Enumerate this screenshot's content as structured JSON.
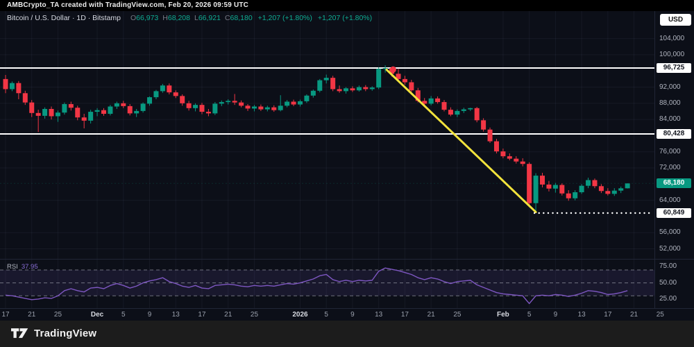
{
  "topbar": {
    "attribution": "AMBCrypto_TA created with TradingView.com, Feb 20, 2026 09:59 UTC"
  },
  "legend": {
    "symbol": "Bitcoin / U.S. Dollar · 1D · Bitstamp",
    "open_label": "O",
    "open": "66,973",
    "high_label": "H",
    "high": "68,208",
    "low_label": "L",
    "low": "66,921",
    "close_label": "C",
    "close": "68,180",
    "change": "+1,207 (+1.80%)",
    "change_secondary": "+1,207 (+1.80%)"
  },
  "price_axis": {
    "currency_button": "USD",
    "ticks": [
      {
        "label": "104,000",
        "price": 104000,
        "type": "grid"
      },
      {
        "label": "100,000",
        "price": 100000,
        "type": "grid"
      },
      {
        "label": "96,725",
        "price": 96725,
        "type": "level"
      },
      {
        "label": "92,000",
        "price": 92000,
        "type": "grid"
      },
      {
        "label": "88,000",
        "price": 88000,
        "type": "grid"
      },
      {
        "label": "84,000",
        "price": 84000,
        "type": "grid"
      },
      {
        "label": "80,428",
        "price": 80428,
        "type": "level"
      },
      {
        "label": "76,000",
        "price": 76000,
        "type": "grid"
      },
      {
        "label": "72,000",
        "price": 72000,
        "type": "grid"
      },
      {
        "label": "68,180",
        "price": 68180,
        "type": "last"
      },
      {
        "label": "64,000",
        "price": 64000,
        "type": "grid"
      },
      {
        "label": "60,849",
        "price": 60849,
        "type": "level"
      },
      {
        "label": "56,000",
        "price": 56000,
        "type": "grid"
      },
      {
        "label": "52,000",
        "price": 52000,
        "type": "grid"
      }
    ],
    "rsi_ticks": [
      {
        "label": "75.00",
        "value": 75
      },
      {
        "label": "50.00",
        "value": 50
      },
      {
        "label": "25.00",
        "value": 25
      }
    ]
  },
  "time_axis": {
    "labels": [
      {
        "text": "17",
        "i": 0
      },
      {
        "text": "21",
        "i": 4
      },
      {
        "text": "25",
        "i": 8
      },
      {
        "text": "Dec",
        "i": 14,
        "strong": true
      },
      {
        "text": "5",
        "i": 18
      },
      {
        "text": "9",
        "i": 22
      },
      {
        "text": "13",
        "i": 26
      },
      {
        "text": "17",
        "i": 30
      },
      {
        "text": "21",
        "i": 34
      },
      {
        "text": "25",
        "i": 38
      },
      {
        "text": "2026",
        "i": 45,
        "strong": true
      },
      {
        "text": "5",
        "i": 49
      },
      {
        "text": "9",
        "i": 53
      },
      {
        "text": "13",
        "i": 57
      },
      {
        "text": "17",
        "i": 61
      },
      {
        "text": "21",
        "i": 65
      },
      {
        "text": "25",
        "i": 69
      },
      {
        "text": "Feb",
        "i": 76,
        "strong": true
      },
      {
        "text": "5",
        "i": 80
      },
      {
        "text": "9",
        "i": 84
      },
      {
        "text": "13",
        "i": 88
      },
      {
        "text": "17",
        "i": 92
      },
      {
        "text": "21",
        "i": 96
      },
      {
        "text": "25",
        "i": 100
      }
    ]
  },
  "indicator": {
    "name": "RSI",
    "value": "37.95",
    "band_upper": 70,
    "band_middle": 50,
    "band_lower": 30
  },
  "footer": {
    "brand": "TradingView"
  },
  "colors": {
    "up": "#089981",
    "down": "#f23645",
    "trendline": "#f2e33c",
    "rsi": "#7e57c2",
    "level_line": "#ffffff",
    "dotted_line": "#ffffff",
    "marker": "#f23645",
    "band_fill": "rgba(126,87,194,0.12)",
    "grid": "rgba(160,175,210,0.07)",
    "band_dash": "rgba(225,229,238,0.45)"
  },
  "chart_data": {
    "type": "candlestick",
    "symbol": "Bitcoin / U.S. Dollar",
    "exchange": "Bitstamp",
    "interval": "1D",
    "ohlc_note": "candles are [open,high,low,close] in USD, daily Nov 17 2025 - Feb 20 2026",
    "candles": [
      [
        94000,
        95000,
        90500,
        91500
      ],
      [
        91500,
        93400,
        91000,
        93000
      ],
      [
        93000,
        93500,
        89000,
        90500
      ],
      [
        90500,
        91100,
        87600,
        88200
      ],
      [
        88200,
        88800,
        84600,
        85600
      ],
      [
        85600,
        86400,
        80900,
        84900
      ],
      [
        84900,
        87000,
        84200,
        86600
      ],
      [
        86600,
        87200,
        84000,
        84800
      ],
      [
        84800,
        86200,
        83400,
        85700
      ],
      [
        85700,
        88200,
        85200,
        87800
      ],
      [
        87800,
        88400,
        86200,
        86900
      ],
      [
        86900,
        87400,
        83800,
        84500
      ],
      [
        84500,
        85400,
        81800,
        83700
      ],
      [
        83700,
        86400,
        83000,
        85900
      ],
      [
        85900,
        86800,
        84800,
        86300
      ],
      [
        86300,
        86800,
        84900,
        85400
      ],
      [
        85400,
        87600,
        85000,
        87200
      ],
      [
        87200,
        88400,
        86600,
        88000
      ],
      [
        88000,
        88600,
        86800,
        87300
      ],
      [
        87300,
        87800,
        85000,
        85500
      ],
      [
        85500,
        86600,
        84600,
        86100
      ],
      [
        86100,
        88200,
        85700,
        87900
      ],
      [
        87900,
        89700,
        87400,
        89500
      ],
      [
        89500,
        91300,
        89000,
        91000
      ],
      [
        91000,
        92800,
        90600,
        92400
      ],
      [
        92400,
        92900,
        90200,
        90700
      ],
      [
        90700,
        91200,
        89300,
        89800
      ],
      [
        89800,
        90200,
        87400,
        88000
      ],
      [
        88000,
        88600,
        86200,
        86800
      ],
      [
        86800,
        88000,
        86000,
        87600
      ],
      [
        87600,
        88100,
        85300,
        85900
      ],
      [
        85900,
        86600,
        84800,
        85500
      ],
      [
        85500,
        88300,
        85100,
        87900
      ],
      [
        87900,
        88700,
        87300,
        88300
      ],
      [
        88300,
        89000,
        87700,
        88600
      ],
      [
        88600,
        90300,
        87600,
        88200
      ],
      [
        88200,
        88700,
        87000,
        87400
      ],
      [
        87400,
        87800,
        86100,
        86700
      ],
      [
        86700,
        87600,
        86000,
        87200
      ],
      [
        87200,
        87700,
        86100,
        86500
      ],
      [
        86500,
        87400,
        86000,
        87000
      ],
      [
        87000,
        87500,
        85900,
        86300
      ],
      [
        86300,
        90000,
        86000,
        87400
      ],
      [
        87400,
        88800,
        87000,
        88400
      ],
      [
        88400,
        88900,
        87300,
        87700
      ],
      [
        87700,
        88900,
        87200,
        88500
      ],
      [
        88500,
        90200,
        88100,
        89900
      ],
      [
        89900,
        91400,
        89400,
        91100
      ],
      [
        91100,
        94000,
        90700,
        93700
      ],
      [
        93700,
        95100,
        92900,
        94300
      ],
      [
        94300,
        94800,
        91000,
        91500
      ],
      [
        91500,
        92400,
        90600,
        91000
      ],
      [
        91000,
        92000,
        90400,
        91700
      ],
      [
        91700,
        92200,
        90800,
        91200
      ],
      [
        91200,
        92400,
        90900,
        92000
      ],
      [
        92000,
        92500,
        91000,
        91500
      ],
      [
        91500,
        92200,
        91100,
        91900
      ],
      [
        91900,
        96900,
        91500,
        96500
      ],
      [
        96500,
        97400,
        95600,
        96700
      ],
      [
        96700,
        96900,
        94600,
        95300
      ],
      [
        95300,
        96500,
        93500,
        94000
      ],
      [
        94000,
        94800,
        92600,
        93200
      ],
      [
        93200,
        93800,
        90800,
        91200
      ],
      [
        91200,
        91800,
        88200,
        88600
      ],
      [
        88600,
        89300,
        87600,
        87900
      ],
      [
        87900,
        89800,
        87500,
        89200
      ],
      [
        89200,
        89700,
        87900,
        88300
      ],
      [
        88300,
        88800,
        86000,
        86400
      ],
      [
        86400,
        87000,
        84800,
        85200
      ],
      [
        85200,
        86500,
        84600,
        86100
      ],
      [
        86100,
        86900,
        85600,
        86500
      ],
      [
        86500,
        86900,
        86100,
        86800
      ],
      [
        86800,
        87100,
        83300,
        83800
      ],
      [
        83800,
        84300,
        81000,
        81500
      ],
      [
        81500,
        82000,
        78200,
        78600
      ],
      [
        78600,
        79200,
        75600,
        76100
      ],
      [
        76100,
        76800,
        74400,
        74900
      ],
      [
        74900,
        75600,
        73900,
        74300
      ],
      [
        74300,
        74900,
        73100,
        73600
      ],
      [
        73600,
        74400,
        72400,
        73000
      ],
      [
        73000,
        73400,
        62300,
        63300
      ],
      [
        63300,
        70700,
        60849,
        70100
      ],
      [
        70100,
        70800,
        67200,
        67900
      ],
      [
        67900,
        68800,
        66200,
        66900
      ],
      [
        66900,
        68300,
        65900,
        67800
      ],
      [
        67800,
        68200,
        65200,
        65700
      ],
      [
        65700,
        66500,
        63900,
        64500
      ],
      [
        64500,
        66500,
        64000,
        66000
      ],
      [
        66000,
        68000,
        65600,
        67600
      ],
      [
        67600,
        69600,
        67000,
        69000
      ],
      [
        69000,
        69400,
        67000,
        67500
      ],
      [
        67500,
        68000,
        65800,
        66300
      ],
      [
        66300,
        67000,
        65200,
        65600
      ],
      [
        65600,
        67000,
        65100,
        66400
      ],
      [
        66400,
        67400,
        65800,
        66973
      ],
      [
        66973,
        68208,
        66921,
        68180
      ]
    ],
    "rsi": [
      31,
      30,
      28,
      26,
      24,
      25,
      27,
      26,
      30,
      38,
      41,
      38,
      36,
      42,
      43,
      41,
      46,
      49,
      46,
      42,
      45,
      50,
      53,
      55,
      58,
      52,
      49,
      45,
      43,
      46,
      42,
      41,
      46,
      47,
      48,
      47,
      45,
      44,
      46,
      45,
      46,
      45,
      47,
      49,
      48,
      50,
      53,
      56,
      61,
      63,
      55,
      52,
      54,
      52,
      54,
      53,
      54,
      68,
      73,
      71,
      69,
      66,
      63,
      58,
      55,
      58,
      56,
      52,
      49,
      52,
      53,
      54,
      47,
      43,
      39,
      35,
      33,
      32,
      31,
      30,
      18,
      30,
      31,
      30,
      32,
      31,
      29,
      31,
      34,
      38,
      37,
      35,
      32,
      33,
      35,
      37.95
    ],
    "levels": [
      96725,
      80428
    ],
    "dotted_level": {
      "price": 60849,
      "from_index": 81
    },
    "trendline": {
      "from": {
        "index": 58.2,
        "price": 96300
      },
      "to": {
        "index": 81,
        "price": 61100
      }
    },
    "marker": {
      "index": 59.2,
      "price": 96350
    },
    "last_price": 68180
  }
}
